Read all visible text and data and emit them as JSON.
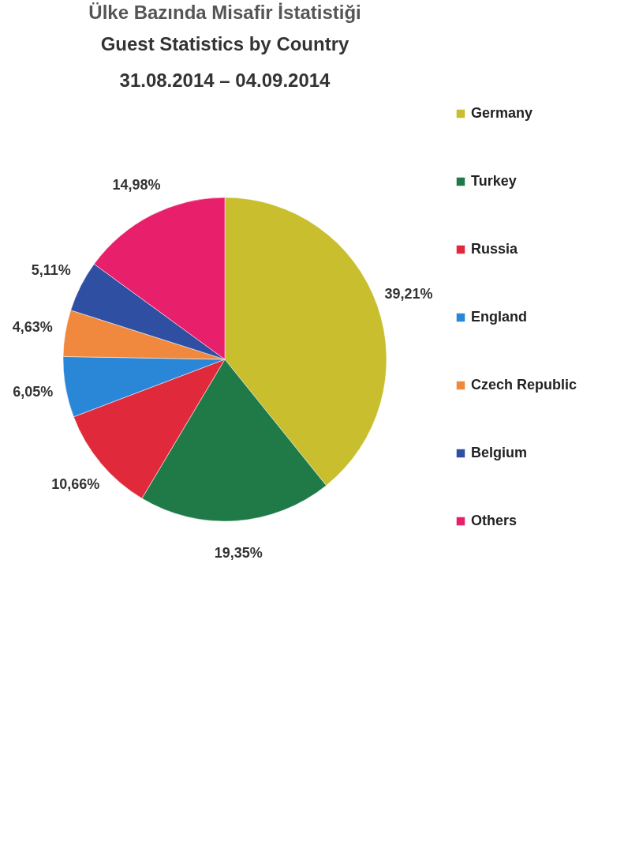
{
  "chart_data": {
    "type": "pie",
    "title": "Ülke Bazında Misafir İstatistiği",
    "subtitle": "Guest Statistics by Country\n31.08.2014 – 04.09.2014",
    "categories": [
      "Germany",
      "Turkey",
      "Russia",
      "England",
      "Czech Republic",
      "Belgium",
      "Others"
    ],
    "values": [
      39.21,
      19.35,
      10.66,
      6.05,
      4.63,
      5.11,
      14.98
    ],
    "colors": [
      "#c8be2e",
      "#1f7a48",
      "#e02a3c",
      "#2a86d6",
      "#f0883e",
      "#2f4fa3",
      "#e8206c"
    ],
    "value_labels": [
      "39,21%",
      "19,35%",
      "10,66%",
      "6,05%",
      "4,63%",
      "5,11%",
      "14,98%"
    ],
    "legend": "right"
  }
}
